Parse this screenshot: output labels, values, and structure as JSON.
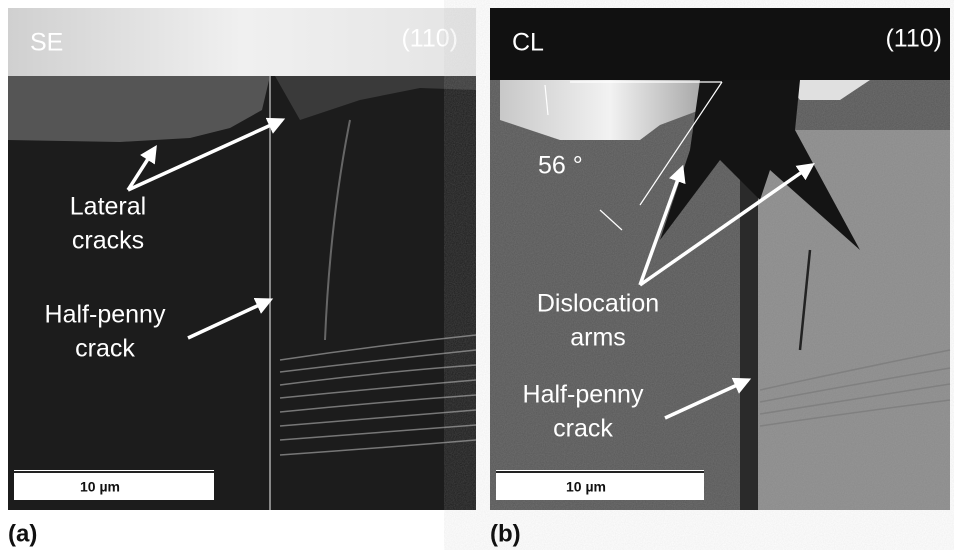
{
  "panels": [
    {
      "label": "(a)",
      "mode": "SE",
      "orientation": "(110)",
      "scale_bar": "10 µm",
      "annotations": [
        {
          "lines": [
            "Lateral",
            "cracks"
          ]
        },
        {
          "lines": [
            "Half-penny",
            "crack"
          ]
        }
      ]
    },
    {
      "label": "(b)",
      "mode": "CL",
      "orientation": "(110)",
      "scale_bar": "10 µm",
      "angle": "56 °",
      "annotations": [
        {
          "lines": [
            "Dislocation",
            "arms"
          ]
        },
        {
          "lines": [
            "Half-penny",
            "crack"
          ]
        }
      ]
    }
  ]
}
